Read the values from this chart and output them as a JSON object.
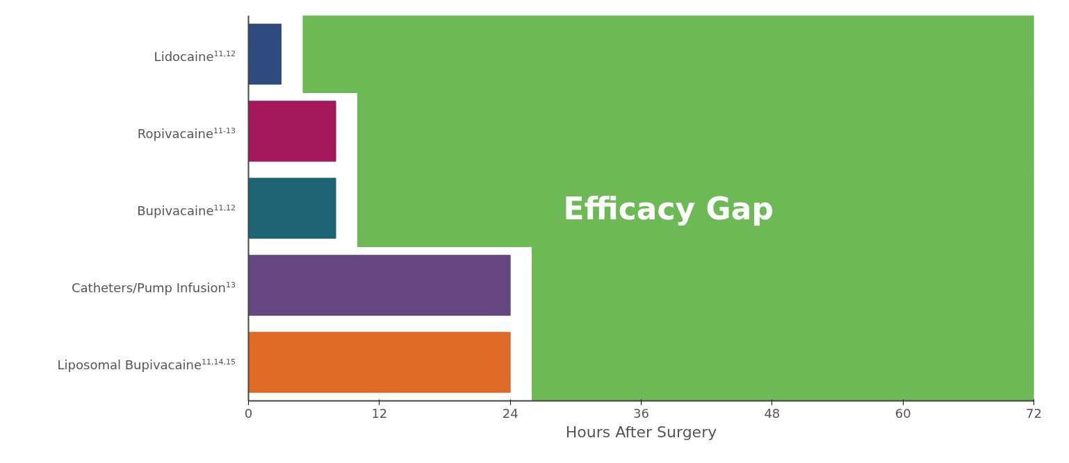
{
  "chart_data": {
    "type": "bar",
    "orientation": "horizontal",
    "xlabel": "Hours After Surgery",
    "categories": [
      "Lidocaine$^{11,12}$",
      "Ropivacaine$^{11-13}$",
      "Bupivacaine$^{11,12}$",
      "Catheters/Pump Infusion$^{13}$",
      "Liposomal Bupivacaine$^{11,14,15}$"
    ],
    "series": [
      {
        "colors": [
          "#2f4a7e",
          "#a3185a",
          "#1f6474",
          "#65467f",
          "#de6a28"
        ],
        "values": [
          3,
          8,
          8,
          24,
          24
        ]
      },
      {
        "name": "Efficacy Gap",
        "color": "#6cb956",
        "base": [
          5,
          10,
          10,
          26,
          26
        ],
        "values": [
          67,
          62,
          62,
          46,
          46
        ]
      }
    ],
    "xlim": [
      0,
      72
    ],
    "xticks": [
      0,
      12,
      24,
      36,
      48,
      60,
      72
    ],
    "grid": false
  }
}
